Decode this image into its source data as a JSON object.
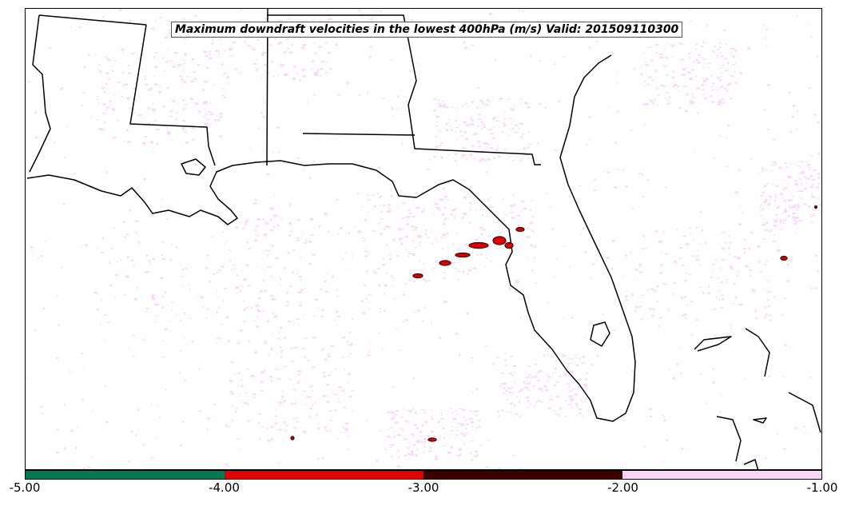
{
  "title": "Maximum downdraft velocities in the lowest 400hPa (m/s) Valid: 201509110300",
  "colorbar": {
    "bins": [
      {
        "from": -5.0,
        "to": -4.0,
        "color": "#007a50"
      },
      {
        "from": -4.0,
        "to": -3.0,
        "color": "#e00000"
      },
      {
        "from": -3.0,
        "to": -2.0,
        "color": "#3a0000"
      },
      {
        "from": -2.0,
        "to": -1.0,
        "color": "#fad6fa"
      }
    ],
    "ticks": [
      "-5.00",
      "-4.00",
      "-3.00",
      "-2.00",
      "-1.00"
    ]
  },
  "map": {
    "region": "Gulf Coast and Florida",
    "land_color": "#ffffff",
    "border_color": "#000000"
  }
}
